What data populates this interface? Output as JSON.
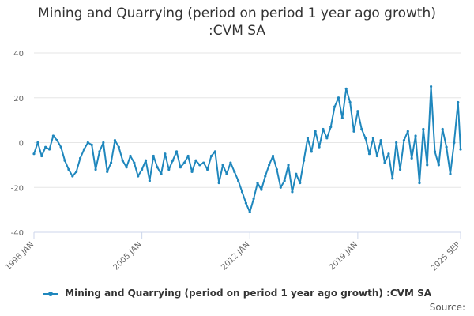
{
  "chart_data": {
    "type": "line",
    "title": "Mining and Quarrying (period on period 1 year ago growth) :CVM SA",
    "title_lines": [
      "Mining and Quarrying (period on period 1 year ago growth)",
      ":CVM SA"
    ],
    "xlabel": "",
    "ylabel": "",
    "ylim": [
      -40,
      40
    ],
    "yticks": [
      -40,
      -20,
      0,
      20,
      40
    ],
    "xlim": [
      1998.0,
      2025.6667
    ],
    "xticks": [
      {
        "label": "1998 JAN",
        "value": 1998.0
      },
      {
        "label": "2005 JAN",
        "value": 2005.0
      },
      {
        "label": "2012 JAN",
        "value": 2012.0
      },
      {
        "label": "2019 JAN",
        "value": 2019.0
      },
      {
        "label": "2025 SEP",
        "value": 2025.6667
      }
    ],
    "grid": true,
    "legend_position": "bottom",
    "series": [
      {
        "name": "Mining and Quarrying (period on period 1 year ago growth) :CVM SA",
        "color": "#1f87bd",
        "x": [
          1998.0,
          1998.25,
          1998.5,
          1998.75,
          1999.0,
          1999.25,
          1999.5,
          1999.75,
          2000.0,
          2000.25,
          2000.5,
          2000.75,
          2001.0,
          2001.25,
          2001.5,
          2001.75,
          2002.0,
          2002.25,
          2002.5,
          2002.75,
          2003.0,
          2003.25,
          2003.5,
          2003.75,
          2004.0,
          2004.25,
          2004.5,
          2004.75,
          2005.0,
          2005.25,
          2005.5,
          2005.75,
          2006.0,
          2006.25,
          2006.5,
          2006.75,
          2007.0,
          2007.25,
          2007.5,
          2007.75,
          2008.0,
          2008.25,
          2008.5,
          2008.75,
          2009.0,
          2009.25,
          2009.5,
          2009.75,
          2010.0,
          2010.25,
          2010.5,
          2010.75,
          2011.0,
          2011.25,
          2011.5,
          2011.75,
          2012.0,
          2012.25,
          2012.5,
          2012.75,
          2013.0,
          2013.25,
          2013.5,
          2013.75,
          2014.0,
          2014.25,
          2014.5,
          2014.75,
          2015.0,
          2015.25,
          2015.5,
          2015.75,
          2016.0,
          2016.25,
          2016.5,
          2016.75,
          2017.0,
          2017.25,
          2017.5,
          2017.75,
          2018.0,
          2018.25,
          2018.5,
          2018.75,
          2019.0,
          2019.25,
          2019.5,
          2019.75,
          2020.0,
          2020.25,
          2020.5,
          2020.75,
          2021.0,
          2021.25,
          2021.5,
          2021.75,
          2022.0,
          2022.25,
          2022.5,
          2022.75,
          2023.0,
          2023.25,
          2023.5,
          2023.75,
          2024.0,
          2024.25,
          2024.5,
          2024.75,
          2025.0,
          2025.25,
          2025.5,
          2025.6667
        ],
        "values": [
          -5,
          0,
          -6,
          -2,
          -3,
          3,
          1,
          -2,
          -8,
          -12,
          -15,
          -13,
          -7,
          -3,
          0,
          -1,
          -12,
          -4,
          0,
          -13,
          -9,
          1,
          -2,
          -8,
          -11,
          -6,
          -9,
          -15,
          -12,
          -8,
          -17,
          -6,
          -11,
          -14,
          -5,
          -12,
          -8,
          -4,
          -11,
          -9,
          -6,
          -13,
          -8,
          -10,
          -9,
          -12,
          -6,
          -4,
          -18,
          -10,
          -14,
          -9,
          -13,
          -17,
          -22,
          -27,
          -31,
          -25,
          -18,
          -21,
          -15,
          -10,
          -6,
          -12,
          -20,
          -17,
          -10,
          -22,
          -14,
          -18,
          -8,
          2,
          -4,
          5,
          -2,
          6,
          2,
          7,
          16,
          20,
          11,
          24,
          18,
          5,
          14,
          6,
          2,
          -5,
          2,
          -6,
          1,
          -9,
          -5,
          -16,
          0,
          -12,
          1,
          5,
          -7,
          3,
          -18,
          6,
          -10,
          25,
          -4,
          -10,
          6,
          -2,
          -14,
          0,
          18,
          -3
        ]
      }
    ]
  },
  "source_label": "Source:"
}
